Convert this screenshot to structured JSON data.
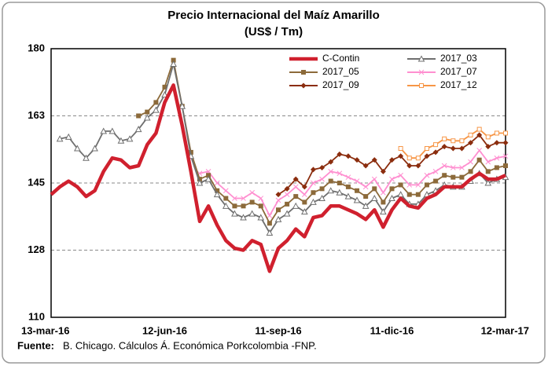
{
  "chart_data": {
    "type": "line",
    "title": "Precio Internacional del Maíz Amarillo",
    "subtitle": "(US$ / Tm)",
    "source_label": "Fuente:",
    "source": "B. Chicago. Cálculos Á. Económica Porkcolombia -FNP.",
    "categories": [
      "13-mar-16",
      null,
      null,
      null,
      null,
      null,
      null,
      null,
      null,
      null,
      null,
      null,
      null,
      "12-jun-16",
      null,
      null,
      null,
      null,
      null,
      null,
      null,
      null,
      null,
      null,
      null,
      null,
      "11-sep-16",
      null,
      null,
      null,
      null,
      null,
      null,
      null,
      null,
      null,
      null,
      null,
      null,
      "11-dic-16",
      null,
      null,
      null,
      null,
      null,
      null,
      null,
      null,
      null,
      null,
      null,
      null,
      "12-mar-17"
    ],
    "ylim": [
      110,
      180
    ],
    "yticks": [
      110,
      {
        "value": 127.5,
        "label": "128"
      },
      145,
      {
        "value": 162.5,
        "label": "163"
      },
      180
    ],
    "grid": true,
    "legend": "top-right",
    "series": [
      {
        "name": "C-Contin",
        "color": "#d0202e",
        "marker": "none",
        "values": [
          142,
          144,
          145.5,
          144,
          141.5,
          143,
          148,
          151.5,
          151,
          149,
          149.5,
          155,
          158,
          166,
          170.5,
          160,
          148,
          135,
          139,
          134,
          130,
          128,
          127.5,
          130,
          129,
          122,
          128,
          130,
          133,
          131,
          136,
          136.5,
          139,
          139,
          138,
          137,
          135.5,
          138,
          133.5,
          138,
          141,
          139,
          138.5,
          141,
          142,
          144,
          144,
          144,
          146,
          147.5,
          146,
          146,
          147
        ]
      },
      {
        "name": "2017_03",
        "color": "#6f6f6f",
        "marker": "triangle",
        "values": [
          null,
          156.5,
          157,
          154,
          151.5,
          154,
          158.5,
          158.5,
          156,
          156.5,
          159,
          162,
          164,
          168,
          176,
          165,
          152,
          145,
          146,
          142,
          139,
          137,
          136,
          137,
          136,
          132,
          135.5,
          137,
          139,
          137.5,
          140,
          141,
          143,
          142.5,
          141.5,
          140.5,
          139,
          141,
          137.5,
          141,
          142,
          139.5,
          139.5,
          142,
          143,
          144.5,
          144,
          144,
          145.5,
          147.5,
          145,
          146,
          146.5
        ]
      },
      {
        "name": "2017_05",
        "color": "#8c6a3a",
        "marker": "square",
        "values": [
          null,
          null,
          null,
          null,
          null,
          null,
          null,
          null,
          null,
          null,
          162.5,
          163.5,
          166,
          170,
          177,
          165,
          153,
          146,
          147,
          143,
          141,
          139,
          139,
          140,
          139,
          134.5,
          138,
          139.5,
          141.5,
          140,
          142.5,
          143.5,
          145.5,
          145,
          144,
          143,
          141.5,
          143.5,
          140,
          143.5,
          144.5,
          142,
          142,
          144.5,
          145.5,
          147,
          146.5,
          146.5,
          148,
          151,
          148,
          149,
          149.5
        ]
      },
      {
        "name": "2017_07",
        "color": "#ff8fd0",
        "marker": "x",
        "values": [
          null,
          null,
          null,
          null,
          null,
          null,
          null,
          null,
          null,
          null,
          null,
          null,
          null,
          null,
          null,
          null,
          null,
          147.5,
          148,
          145,
          143,
          141,
          141,
          142.5,
          141,
          136.5,
          140.5,
          142,
          144,
          142,
          145,
          146,
          148,
          147.5,
          146.5,
          145.5,
          144,
          146,
          142.5,
          146,
          147,
          144.5,
          144.5,
          147,
          148,
          149.5,
          149,
          149,
          150.5,
          153.5,
          150.5,
          151.5,
          152
        ]
      },
      {
        "name": "2017_09",
        "color": "#8b2d0e",
        "marker": "diamond",
        "values": [
          null,
          null,
          null,
          null,
          null,
          null,
          null,
          null,
          null,
          null,
          null,
          null,
          null,
          null,
          null,
          null,
          null,
          null,
          null,
          null,
          null,
          null,
          null,
          null,
          null,
          null,
          142,
          143.5,
          146,
          144,
          148.5,
          149,
          150.5,
          152.5,
          152,
          151,
          149.5,
          151,
          148,
          151,
          152,
          149.5,
          149.5,
          152,
          153,
          154.5,
          154,
          154,
          155.5,
          157.5,
          154.5,
          155.5,
          155.5
        ]
      },
      {
        "name": "2017_12",
        "color": "#f79646",
        "marker": "square-open",
        "values": [
          null,
          null,
          null,
          null,
          null,
          null,
          null,
          null,
          null,
          null,
          null,
          null,
          null,
          null,
          null,
          null,
          null,
          null,
          null,
          null,
          null,
          null,
          null,
          null,
          null,
          null,
          null,
          null,
          null,
          null,
          null,
          null,
          null,
          null,
          null,
          null,
          null,
          null,
          null,
          null,
          154,
          151.5,
          151.5,
          154,
          155,
          156.5,
          156,
          156,
          157.5,
          159,
          157,
          158,
          158
        ]
      }
    ]
  }
}
